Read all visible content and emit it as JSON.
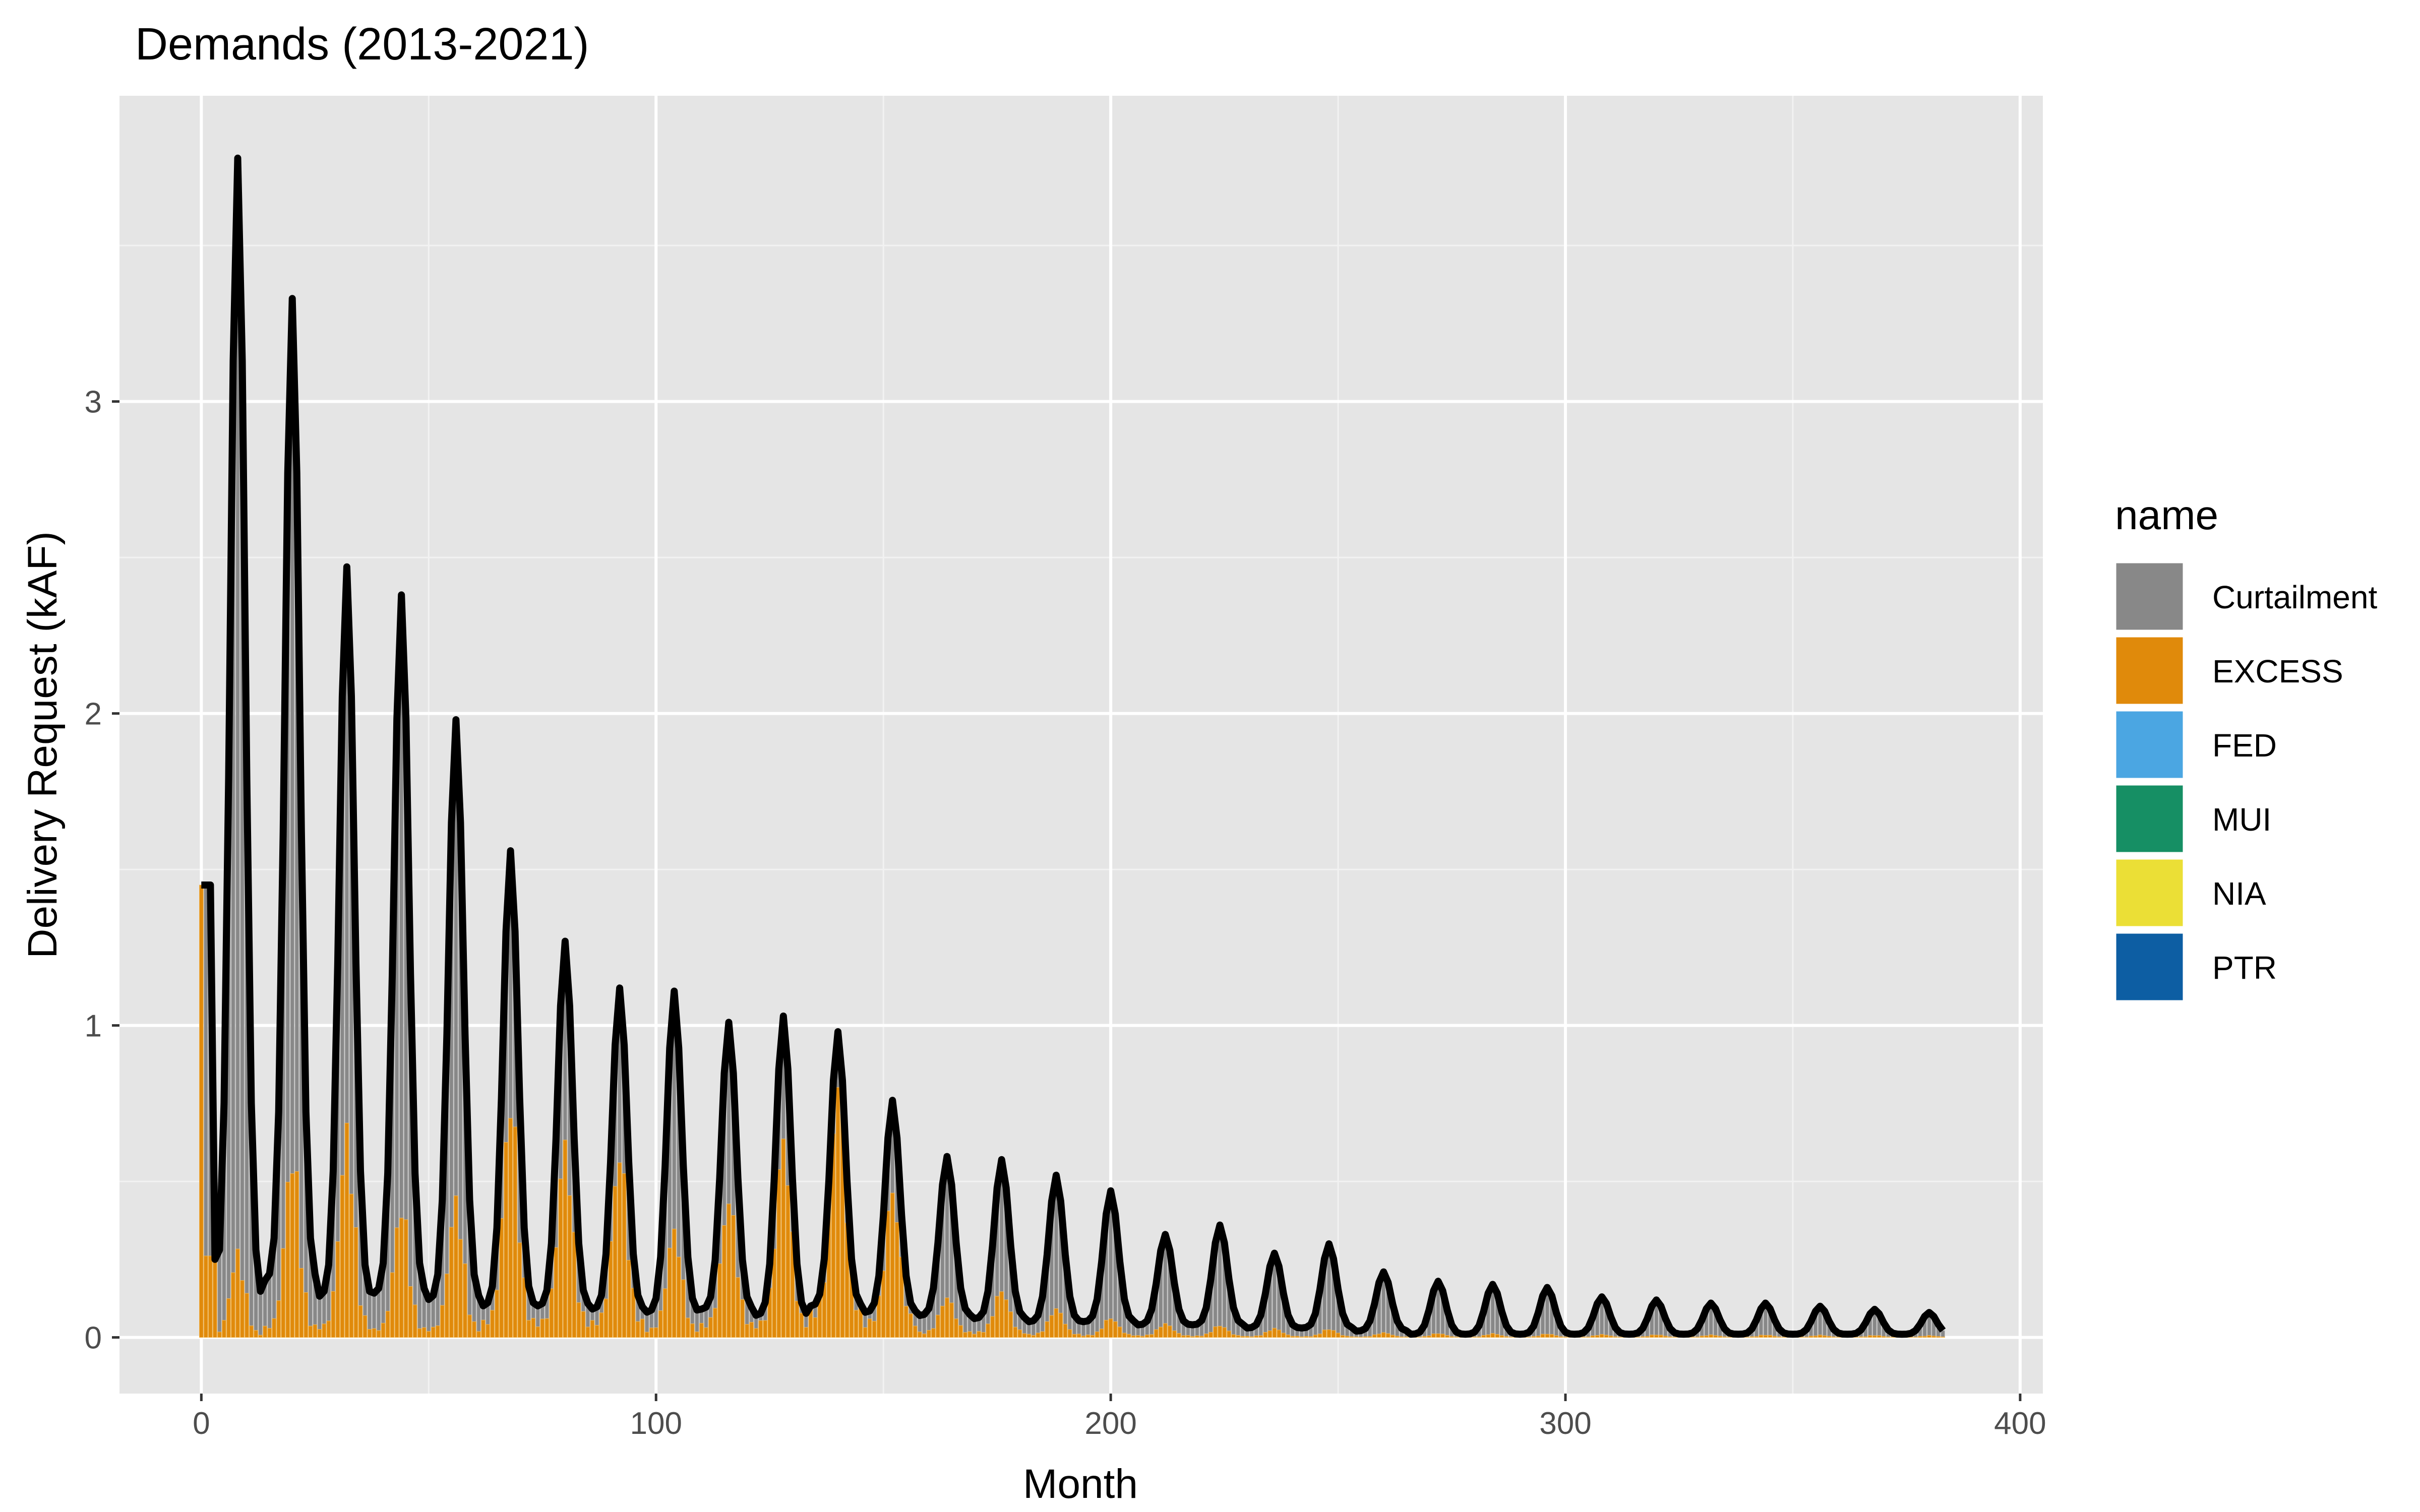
{
  "chart_data": {
    "type": "area",
    "title": "Demands (2013-2021)",
    "xlabel": "Month",
    "ylabel": "Delivery Request (kAF)",
    "xlim": [
      -18,
      405
    ],
    "ylim": [
      -0.18,
      3.98
    ],
    "x_ticks": [
      0,
      100,
      200,
      300,
      400
    ],
    "y_ticks": [
      0,
      1,
      2,
      3
    ],
    "grid": true,
    "background": "#e5e5e5",
    "legend": {
      "title": "name",
      "position": "right",
      "entries": [
        {
          "label": "Curtailment",
          "color": "#888888"
        },
        {
          "label": "EXCESS",
          "color": "#e08a0b"
        },
        {
          "label": "FED",
          "color": "#4ba6e2"
        },
        {
          "label": "MUI",
          "color": "#168f64"
        },
        {
          "label": "NIA",
          "color": "#ebdf36"
        },
        {
          "label": "PTR",
          "color": "#0d5ea3"
        }
      ]
    },
    "months": 384,
    "start": {
      "x": [
        0,
        1,
        2,
        3
      ],
      "y": [
        1.45,
        1.45,
        1.45,
        0.25
      ]
    },
    "cycles": [
      {
        "peak_month": 8,
        "peak": 3.78,
        "trough": 0.12,
        "excess_share": 0.08
      },
      {
        "peak_month": 20,
        "peak": 3.33,
        "trough": 0.18,
        "excess_share": 0.2
      },
      {
        "peak_month": 32,
        "peak": 2.47,
        "trough": 0.13,
        "excess_share": 0.3
      },
      {
        "peak_month": 44,
        "peak": 2.38,
        "trough": 0.14,
        "excess_share": 0.2
      },
      {
        "peak_month": 56,
        "peak": 1.98,
        "trough": 0.12,
        "excess_share": 0.25
      },
      {
        "peak_month": 68,
        "peak": 1.56,
        "trough": 0.1,
        "excess_share": 0.55
      },
      {
        "peak_month": 80,
        "peak": 1.27,
        "trough": 0.1,
        "excess_share": 0.55
      },
      {
        "peak_month": 92,
        "peak": 1.12,
        "trough": 0.09,
        "excess_share": 0.6
      },
      {
        "peak_month": 104,
        "peak": 1.11,
        "trough": 0.08,
        "excess_share": 0.35
      },
      {
        "peak_month": 116,
        "peak": 1.01,
        "trough": 0.09,
        "excess_share": 0.5
      },
      {
        "peak_month": 128,
        "peak": 1.03,
        "trough": 0.07,
        "excess_share": 0.7
      },
      {
        "peak_month": 140,
        "peak": 0.98,
        "trough": 0.1,
        "excess_share": 0.95
      },
      {
        "peak_month": 152,
        "peak": 0.76,
        "trough": 0.08,
        "excess_share": 0.7
      },
      {
        "peak_month": 164,
        "peak": 0.58,
        "trough": 0.07,
        "excess_share": 0.25
      },
      {
        "peak_month": 176,
        "peak": 0.57,
        "trough": 0.06,
        "excess_share": 0.3
      },
      {
        "peak_month": 188,
        "peak": 0.52,
        "trough": 0.05,
        "excess_share": 0.2
      },
      {
        "peak_month": 200,
        "peak": 0.47,
        "trough": 0.05,
        "excess_share": 0.15
      },
      {
        "peak_month": 212,
        "peak": 0.33,
        "trough": 0.04,
        "excess_share": 0.15
      },
      {
        "peak_month": 224,
        "peak": 0.36,
        "trough": 0.04,
        "excess_share": 0.12
      },
      {
        "peak_month": 236,
        "peak": 0.27,
        "trough": 0.03,
        "excess_share": 0.12
      },
      {
        "peak_month": 248,
        "peak": 0.3,
        "trough": 0.03,
        "excess_share": 0.1
      },
      {
        "peak_month": 260,
        "peak": 0.21,
        "trough": 0.02,
        "excess_share": 0.08
      },
      {
        "peak_month": 272,
        "peak": 0.18,
        "trough": 0.01,
        "excess_share": 0.08
      },
      {
        "peak_month": 284,
        "peak": 0.17,
        "trough": 0.01,
        "excess_share": 0.08
      },
      {
        "peak_month": 296,
        "peak": 0.16,
        "trough": 0.01,
        "excess_share": 0.08
      },
      {
        "peak_month": 308,
        "peak": 0.13,
        "trough": 0.01,
        "excess_share": 0.08
      },
      {
        "peak_month": 320,
        "peak": 0.12,
        "trough": 0.01,
        "excess_share": 0.08
      },
      {
        "peak_month": 332,
        "peak": 0.11,
        "trough": 0.01,
        "excess_share": 0.08
      },
      {
        "peak_month": 344,
        "peak": 0.11,
        "trough": 0.01,
        "excess_share": 0.08
      },
      {
        "peak_month": 356,
        "peak": 0.1,
        "trough": 0.01,
        "excess_share": 0.08
      },
      {
        "peak_month": 368,
        "peak": 0.09,
        "trough": 0.01,
        "excess_share": 0.08
      },
      {
        "peak_month": 380,
        "peak": 0.08,
        "trough": 0.01,
        "excess_share": 0.08
      }
    ],
    "outline_color": "#000000"
  }
}
